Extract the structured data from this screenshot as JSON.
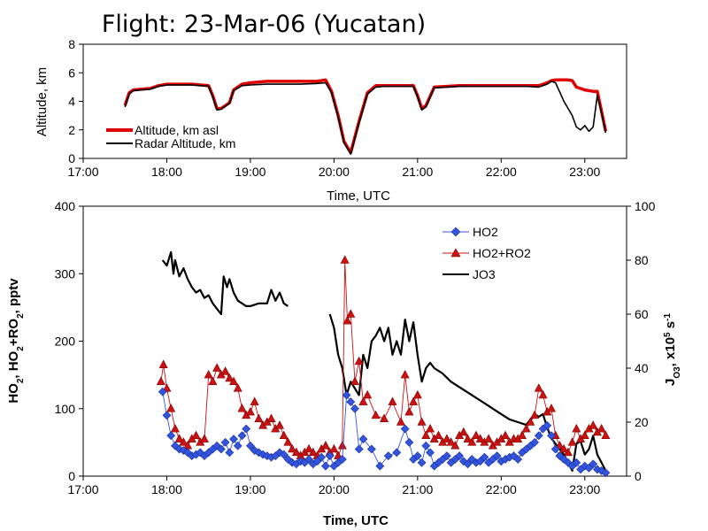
{
  "title": "Flight: 23-Mar-06 (Yucatan)",
  "chart_data": [
    {
      "type": "line",
      "name": "altitude-panel",
      "xlabel": "Time, UTC",
      "ylabel": "Altitude, km",
      "xlim": [
        17,
        23.5
      ],
      "ylim": [
        0,
        8
      ],
      "x_ticks": [
        17,
        18,
        19,
        20,
        21,
        22,
        23
      ],
      "x_tick_labels": [
        "17:00",
        "18:00",
        "19:00",
        "20:00",
        "21:00",
        "22:00",
        "23:00"
      ],
      "y_ticks": [
        0,
        2,
        4,
        6,
        8
      ],
      "y_tick_labels": [
        "0",
        "2",
        "4",
        "6",
        "8"
      ],
      "legend_position": "lower-left",
      "series": [
        {
          "name": "Altitude, km asl",
          "color": "#e00000",
          "x": [
            17.5,
            17.55,
            17.6,
            17.7,
            17.8,
            17.9,
            18.0,
            18.1,
            18.3,
            18.5,
            18.55,
            18.6,
            18.65,
            18.75,
            18.8,
            18.9,
            19.0,
            19.2,
            19.4,
            19.6,
            19.8,
            19.9,
            19.97,
            20.05,
            20.12,
            20.2,
            20.3,
            20.4,
            20.5,
            20.6,
            20.8,
            20.95,
            21.0,
            21.05,
            21.1,
            21.2,
            21.5,
            21.8,
            22.1,
            22.3,
            22.45,
            22.55,
            22.6,
            22.65,
            22.8,
            22.85,
            22.9,
            23.0,
            23.1,
            23.15,
            23.2,
            23.25
          ],
          "y": [
            3.7,
            4.6,
            4.8,
            4.85,
            4.9,
            5.1,
            5.2,
            5.2,
            5.2,
            5.1,
            4.4,
            3.5,
            3.5,
            3.9,
            4.8,
            5.2,
            5.3,
            5.4,
            5.4,
            5.4,
            5.4,
            5.5,
            4.7,
            3.0,
            1.2,
            0.4,
            2.6,
            4.6,
            5.1,
            5.1,
            5.1,
            5.1,
            4.4,
            3.5,
            3.7,
            5.0,
            5.1,
            5.1,
            5.1,
            5.1,
            5.1,
            5.3,
            5.45,
            5.5,
            5.5,
            5.45,
            5.0,
            4.8,
            4.7,
            4.7,
            3.3,
            1.9
          ]
        },
        {
          "name": "Radar Altitude, km",
          "color": "#000000",
          "x": [
            17.5,
            17.55,
            17.6,
            17.7,
            17.8,
            17.9,
            18.0,
            18.1,
            18.3,
            18.5,
            18.55,
            18.6,
            18.65,
            18.75,
            18.8,
            18.9,
            19.0,
            19.2,
            19.4,
            19.6,
            19.8,
            19.9,
            19.97,
            20.05,
            20.12,
            20.2,
            20.3,
            20.4,
            20.5,
            20.6,
            20.8,
            20.95,
            21.0,
            21.05,
            21.1,
            21.2,
            21.5,
            21.8,
            22.1,
            22.3,
            22.45,
            22.55,
            22.6,
            22.65,
            22.75,
            22.85,
            22.9,
            22.95,
            23.0,
            23.05,
            23.1,
            23.15,
            23.2,
            23.25
          ],
          "y": [
            3.6,
            4.5,
            4.75,
            4.8,
            4.85,
            5.05,
            5.15,
            5.15,
            5.15,
            5.05,
            4.3,
            3.4,
            3.45,
            3.85,
            4.75,
            5.1,
            5.15,
            5.2,
            5.2,
            5.2,
            5.25,
            5.3,
            4.6,
            2.9,
            1.1,
            0.3,
            2.5,
            4.5,
            5.0,
            5.05,
            5.05,
            5.05,
            4.3,
            3.4,
            3.6,
            4.95,
            5.05,
            5.05,
            5.05,
            5.05,
            5.0,
            5.2,
            5.4,
            5.3,
            4.0,
            3.0,
            2.2,
            2.0,
            2.3,
            1.9,
            2.2,
            4.4,
            3.2,
            1.8
          ]
        }
      ]
    },
    {
      "type": "scatter",
      "name": "radical-panel",
      "xlabel": "Time, UTC",
      "ylabel": "HO2, HO2+RO2, pptv",
      "ylabel_parts": [
        "HO",
        "2",
        ", HO",
        "2",
        "+RO",
        "2",
        ", pptv"
      ],
      "y2label": "JO3, x10^5 s^-1",
      "y2label_parts": [
        "J",
        "O3",
        ", x10",
        "5",
        " s",
        "-1"
      ],
      "xlim": [
        17,
        23.5
      ],
      "ylim": [
        0,
        400
      ],
      "y2lim": [
        0,
        100
      ],
      "x_ticks": [
        17,
        18,
        19,
        20,
        21,
        22,
        23
      ],
      "x_tick_labels": [
        "17:00",
        "18:00",
        "19:00",
        "20:00",
        "21:00",
        "22:00",
        "23:00"
      ],
      "y_ticks": [
        0,
        100,
        200,
        300,
        400
      ],
      "y_tick_labels": [
        "0",
        "100",
        "200",
        "300",
        "400"
      ],
      "y2_ticks": [
        0,
        20,
        40,
        60,
        80,
        100
      ],
      "y2_tick_labels": [
        "0",
        "20",
        "40",
        "60",
        "80",
        "100"
      ],
      "legend_position": "top-right",
      "series": [
        {
          "name": "HO2",
          "color": "#3355dd",
          "marker": "diamond",
          "axis": "left",
          "x": [
            17.95,
            18.0,
            18.05,
            18.1,
            18.15,
            18.2,
            18.25,
            18.3,
            18.35,
            18.4,
            18.45,
            18.5,
            18.55,
            18.6,
            18.65,
            18.7,
            18.75,
            18.8,
            18.85,
            18.9,
            18.95,
            19.0,
            19.05,
            19.1,
            19.15,
            19.2,
            19.25,
            19.3,
            19.35,
            19.4,
            19.45,
            19.5,
            19.55,
            19.6,
            19.65,
            19.7,
            19.75,
            19.8,
            19.85,
            19.9,
            19.95,
            20.0,
            20.05,
            20.1,
            20.15,
            20.2,
            20.25,
            20.3,
            20.35,
            20.45,
            20.55,
            20.65,
            20.75,
            20.85,
            20.9,
            20.95,
            21.0,
            21.05,
            21.1,
            21.15,
            21.2,
            21.25,
            21.3,
            21.35,
            21.4,
            21.45,
            21.5,
            21.55,
            21.6,
            21.65,
            21.7,
            21.75,
            21.8,
            21.85,
            21.9,
            21.95,
            22.0,
            22.05,
            22.1,
            22.15,
            22.2,
            22.25,
            22.3,
            22.35,
            22.4,
            22.45,
            22.5,
            22.55,
            22.6,
            22.65,
            22.7,
            22.75,
            22.8,
            22.85,
            22.9,
            22.95,
            23.0,
            23.05,
            23.1,
            23.15,
            23.2,
            23.25
          ],
          "y": [
            125,
            90,
            60,
            45,
            40,
            38,
            35,
            30,
            32,
            35,
            30,
            35,
            40,
            45,
            40,
            50,
            35,
            55,
            45,
            60,
            70,
            45,
            38,
            35,
            32,
            30,
            28,
            30,
            35,
            32,
            25,
            20,
            18,
            22,
            20,
            25,
            18,
            22,
            28,
            15,
            30,
            15,
            20,
            25,
            120,
            110,
            100,
            40,
            55,
            40,
            15,
            30,
            35,
            70,
            50,
            25,
            30,
            20,
            45,
            35,
            15,
            20,
            25,
            30,
            20,
            25,
            30,
            22,
            18,
            25,
            20,
            22,
            28,
            20,
            25,
            30,
            22,
            25,
            28,
            30,
            25,
            35,
            40,
            45,
            50,
            60,
            70,
            75,
            60,
            40,
            30,
            25,
            20,
            15,
            20,
            10,
            15,
            12,
            18,
            10,
            8,
            5
          ]
        },
        {
          "name": "HO2+RO2",
          "color": "#cc1111",
          "marker": "triangle",
          "axis": "left",
          "x": [
            17.93,
            17.96,
            18.0,
            18.05,
            18.1,
            18.15,
            18.2,
            18.25,
            18.3,
            18.35,
            18.4,
            18.45,
            18.5,
            18.55,
            18.6,
            18.65,
            18.7,
            18.75,
            18.8,
            18.85,
            18.9,
            18.95,
            19.0,
            19.05,
            19.1,
            19.15,
            19.2,
            19.25,
            19.3,
            19.35,
            19.4,
            19.45,
            19.5,
            19.55,
            19.6,
            19.65,
            19.7,
            19.75,
            19.8,
            19.85,
            19.9,
            19.95,
            20.0,
            20.05,
            20.1,
            20.13,
            20.16,
            20.2,
            20.25,
            20.3,
            20.35,
            20.4,
            20.5,
            20.6,
            20.7,
            20.8,
            20.85,
            20.9,
            20.95,
            21.0,
            21.05,
            21.1,
            21.15,
            21.2,
            21.25,
            21.3,
            21.35,
            21.4,
            21.45,
            21.5,
            21.55,
            21.6,
            21.65,
            21.7,
            21.75,
            21.8,
            21.85,
            21.9,
            21.95,
            22.0,
            22.05,
            22.1,
            22.15,
            22.2,
            22.25,
            22.3,
            22.35,
            22.4,
            22.45,
            22.5,
            22.55,
            22.6,
            22.65,
            22.7,
            22.75,
            22.8,
            22.85,
            22.9,
            22.95,
            23.0,
            23.05,
            23.1,
            23.15,
            23.2,
            23.25
          ],
          "y": [
            140,
            165,
            130,
            100,
            70,
            55,
            50,
            45,
            55,
            60,
            50,
            55,
            150,
            140,
            160,
            150,
            155,
            145,
            140,
            130,
            100,
            90,
            95,
            110,
            85,
            75,
            80,
            85,
            70,
            75,
            60,
            50,
            40,
            35,
            30,
            35,
            40,
            35,
            30,
            40,
            45,
            35,
            40,
            30,
            45,
            320,
            230,
            240,
            140,
            170,
            110,
            120,
            90,
            85,
            110,
            80,
            150,
            95,
            110,
            120,
            80,
            60,
            70,
            55,
            60,
            50,
            55,
            50,
            45,
            60,
            65,
            55,
            50,
            60,
            55,
            50,
            55,
            45,
            50,
            55,
            60,
            50,
            55,
            55,
            60,
            70,
            80,
            90,
            130,
            120,
            95,
            100,
            60,
            45,
            40,
            35,
            50,
            70,
            55,
            60,
            70,
            75,
            65,
            70,
            60
          ]
        },
        {
          "name": "JO3",
          "color": "#000000",
          "marker": "none",
          "axis": "right",
          "segments": [
            {
              "x": [
                17.95,
                18.0,
                18.05,
                18.08,
                18.1,
                18.15,
                18.2,
                18.25,
                18.3,
                18.35,
                18.4,
                18.45,
                18.5,
                18.55,
                18.6,
                18.65,
                18.68,
                18.72,
                18.75,
                18.8,
                18.85,
                18.9,
                18.95,
                19.0,
                19.1,
                19.2,
                19.25,
                19.3,
                19.35,
                19.4,
                19.45
              ],
              "y": [
                80,
                78,
                83,
                75,
                80,
                74,
                77,
                73,
                70,
                68,
                69,
                66,
                67,
                64,
                62,
                60,
                74,
                70,
                73,
                68,
                65,
                64,
                63,
                63,
                64,
                64,
                69,
                65,
                68,
                64,
                63
              ]
            },
            {
              "x": [
                19.95,
                20.0,
                20.05,
                20.1,
                20.15,
                20.2,
                20.3,
                20.35,
                20.4,
                20.45,
                20.5,
                20.55,
                20.6,
                20.65,
                20.7,
                20.75,
                20.8,
                20.85,
                20.9,
                20.95,
                21.0,
                21.05,
                21.1,
                21.15,
                21.2,
                21.3,
                21.4,
                21.5,
                21.6,
                21.7,
                21.8,
                21.9,
                22.0,
                22.1,
                22.2,
                22.3,
                22.4,
                22.45,
                22.5,
                22.55,
                22.6,
                22.65,
                22.7,
                22.75,
                22.8,
                22.85,
                22.9,
                22.95,
                23.0,
                23.05,
                23.1,
                23.15,
                23.2,
                23.25
              ],
              "y": [
                60,
                55,
                45,
                40,
                30,
                35,
                30,
                45,
                40,
                50,
                52,
                55,
                50,
                55,
                45,
                50,
                45,
                58,
                50,
                57,
                45,
                35,
                40,
                42,
                40,
                38,
                35,
                33,
                31,
                29,
                27,
                25,
                23,
                21,
                20,
                19,
                23,
                22,
                23,
                18,
                14,
                12,
                10,
                8,
                5,
                2,
                12,
                13,
                8,
                10,
                15,
                8,
                5,
                2
              ]
            }
          ]
        }
      ]
    }
  ]
}
